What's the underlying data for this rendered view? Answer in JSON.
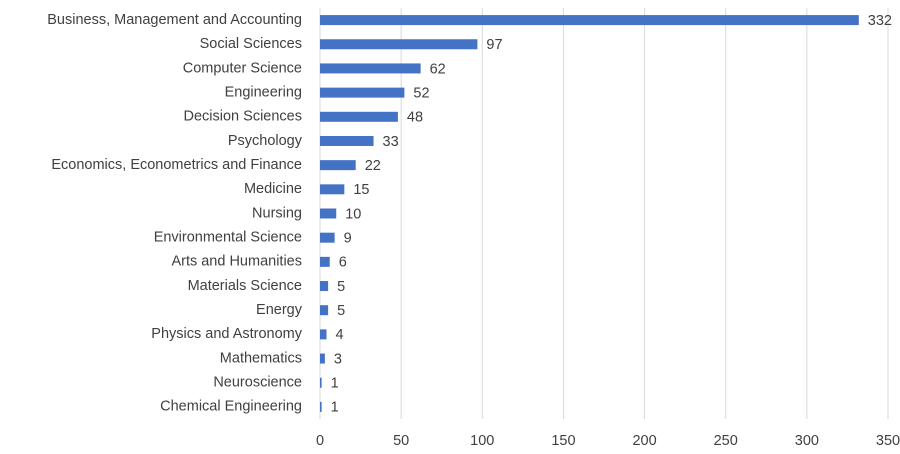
{
  "chart_data": {
    "type": "bar",
    "orientation": "horizontal",
    "categories": [
      "Business, Management and Accounting",
      "Social Sciences",
      "Computer Science",
      "Engineering",
      "Decision Sciences",
      "Psychology",
      "Economics, Econometrics and Finance",
      "Medicine",
      "Nursing",
      "Environmental Science",
      "Arts and Humanities",
      "Materials Science",
      "Energy",
      "Physics and Astronomy",
      "Mathematics",
      "Neuroscience",
      "Chemical Engineering"
    ],
    "values": [
      332,
      97,
      62,
      52,
      48,
      33,
      22,
      15,
      10,
      9,
      6,
      5,
      5,
      4,
      3,
      1,
      1
    ],
    "color": "#4472c4",
    "xlim": [
      0,
      350
    ],
    "xticks": [
      0,
      50,
      100,
      150,
      200,
      250,
      300,
      350
    ],
    "grid": true
  }
}
